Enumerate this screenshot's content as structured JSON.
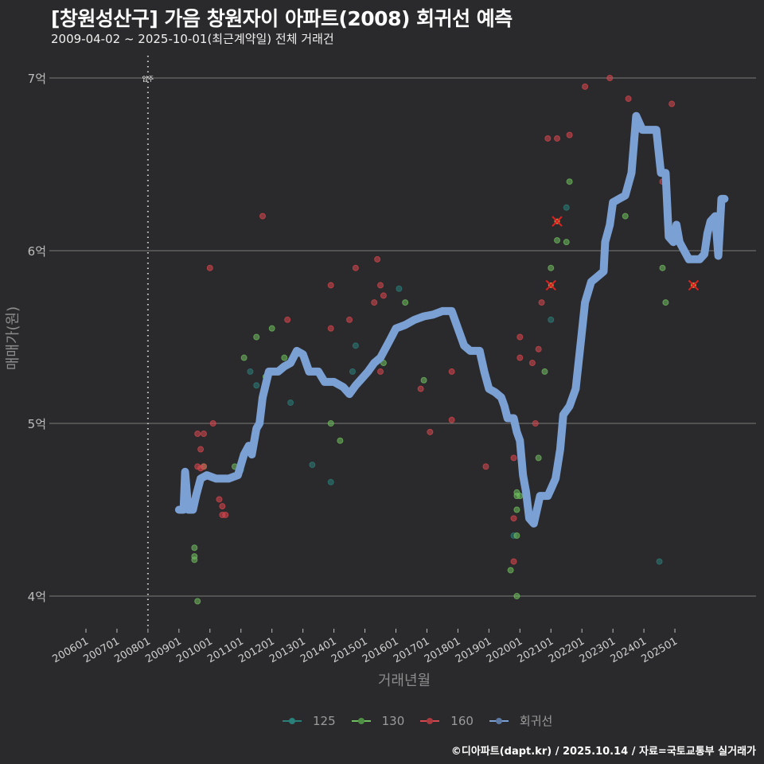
{
  "header": {
    "title": "[창원성산구] 가음 창원자이 아파트(2008) 회귀선 예측",
    "subtitle": "2009-04-02 ~ 2025-10-01(최근계약일) 전체 거래건"
  },
  "caption": "©디아파트(dapt.kr) / 2025.10.14 / 자료=국토교통부 실거래가",
  "colors": {
    "background": "#2a292b",
    "grid": "#7a7a7a",
    "s125": "#2a7f7a",
    "s130": "#6fbf5f",
    "s160": "#d9474f",
    "regression": "#7aa0d4",
    "marker": "#e02020"
  },
  "legend": [
    {
      "label": "125",
      "color": "#2a7f7a"
    },
    {
      "label": "130",
      "color": "#6fbf5f"
    },
    {
      "label": "160",
      "color": "#d9474f"
    },
    {
      "label": "회귀선",
      "color": "#7aa0d4"
    }
  ],
  "chart_data": {
    "type": "scatter",
    "title": "[창원성산구] 가음 창원자이 아파트(2008) 회귀선 예측",
    "subtitle": "2009-04-02 ~ 2025-10-01(최근계약일) 전체 거래건",
    "xlabel": "거래년월",
    "ylabel": "매매가(원)",
    "x_ticks": [
      "200601",
      "200701",
      "200801",
      "200901",
      "201001",
      "201101",
      "201201",
      "201301",
      "201401",
      "201501",
      "201601",
      "201701",
      "201801",
      "201901",
      "202001",
      "202101",
      "202201",
      "202301",
      "202401",
      "202501"
    ],
    "y_ticks": [
      {
        "value": 4,
        "label": "4억"
      },
      {
        "value": 5,
        "label": "5억"
      },
      {
        "value": 6,
        "label": "6억"
      },
      {
        "value": 7,
        "label": "7억"
      }
    ],
    "ylim": [
      3.85,
      7.12
    ],
    "xlim": [
      2005.2,
      2027.6
    ],
    "grid": true,
    "legend_position": "bottom",
    "annotation": {
      "x": 2008.0,
      "label": "입주"
    },
    "series": [
      {
        "name": "125",
        "points": [
          [
            2011.0,
            4.73
          ],
          [
            2011.5,
            5.22
          ],
          [
            2011.3,
            5.3
          ],
          [
            2012.6,
            5.12
          ],
          [
            2013.3,
            4.76
          ],
          [
            2013.9,
            4.66
          ],
          [
            2014.6,
            5.3
          ],
          [
            2014.7,
            5.45
          ],
          [
            2016.1,
            5.78
          ],
          [
            2019.8,
            4.35
          ],
          [
            2021.0,
            5.6
          ],
          [
            2021.5,
            6.25
          ],
          [
            2024.5,
            4.2
          ]
        ]
      },
      {
        "name": "130",
        "points": [
          [
            2009.2,
            4.5
          ],
          [
            2009.5,
            4.28
          ],
          [
            2009.5,
            4.23
          ],
          [
            2009.5,
            4.21
          ],
          [
            2009.6,
            3.97
          ],
          [
            2009.8,
            4.75
          ],
          [
            2010.8,
            4.75
          ],
          [
            2011.1,
            5.38
          ],
          [
            2011.4,
            4.85
          ],
          [
            2011.5,
            5.5
          ],
          [
            2011.8,
            5.27
          ],
          [
            2012.0,
            5.55
          ],
          [
            2012.4,
            5.38
          ],
          [
            2013.3,
            5.3
          ],
          [
            2013.9,
            5.0
          ],
          [
            2014.2,
            4.9
          ],
          [
            2015.6,
            5.35
          ],
          [
            2016.3,
            5.7
          ],
          [
            2016.9,
            5.25
          ],
          [
            2019.7,
            4.15
          ],
          [
            2019.9,
            4.6
          ],
          [
            2019.9,
            4.58
          ],
          [
            2020.0,
            4.58
          ],
          [
            2019.9,
            4.5
          ],
          [
            2019.9,
            4.35
          ],
          [
            2019.9,
            4.0
          ],
          [
            2020.6,
            4.8
          ],
          [
            2020.8,
            5.3
          ],
          [
            2021.0,
            5.9
          ],
          [
            2021.2,
            6.06
          ],
          [
            2021.5,
            6.05
          ],
          [
            2021.6,
            6.4
          ],
          [
            2023.4,
            6.2
          ],
          [
            2024.6,
            5.9
          ],
          [
            2024.7,
            5.7
          ]
        ]
      },
      {
        "name": "160",
        "points": [
          [
            2009.6,
            4.94
          ],
          [
            2009.8,
            4.94
          ],
          [
            2009.7,
            4.85
          ],
          [
            2009.8,
            4.75
          ],
          [
            2009.6,
            4.75
          ],
          [
            2009.7,
            4.74
          ],
          [
            2009.9,
            4.7
          ],
          [
            2010.1,
            4.69
          ],
          [
            2010.0,
            5.9
          ],
          [
            2010.1,
            5.0
          ],
          [
            2010.3,
            4.56
          ],
          [
            2010.4,
            4.52
          ],
          [
            2010.4,
            4.47
          ],
          [
            2010.5,
            4.47
          ],
          [
            2011.7,
            6.2
          ],
          [
            2012.5,
            5.6
          ],
          [
            2013.9,
            5.8
          ],
          [
            2013.9,
            5.55
          ],
          [
            2014.7,
            5.9
          ],
          [
            2014.5,
            5.6
          ],
          [
            2015.3,
            5.7
          ],
          [
            2015.4,
            5.95
          ],
          [
            2015.5,
            5.8
          ],
          [
            2015.6,
            5.74
          ],
          [
            2015.5,
            5.3
          ],
          [
            2016.8,
            5.2
          ],
          [
            2017.1,
            4.95
          ],
          [
            2017.8,
            5.02
          ],
          [
            2017.8,
            5.3
          ],
          [
            2018.9,
            4.75
          ],
          [
            2019.8,
            4.8
          ],
          [
            2019.8,
            4.45
          ],
          [
            2019.8,
            4.2
          ],
          [
            2020.0,
            5.5
          ],
          [
            2020.0,
            5.38
          ],
          [
            2020.4,
            5.35
          ],
          [
            2020.5,
            5.0
          ],
          [
            2020.6,
            5.43
          ],
          [
            2020.7,
            5.7
          ],
          [
            2020.9,
            6.65
          ],
          [
            2021.2,
            6.65
          ],
          [
            2021.6,
            6.67
          ],
          [
            2022.1,
            6.95
          ],
          [
            2022.9,
            7.0
          ],
          [
            2023.5,
            6.88
          ],
          [
            2023.8,
            6.7
          ],
          [
            2024.6,
            6.4
          ],
          [
            2024.7,
            6.4
          ],
          [
            2024.9,
            6.85
          ]
        ]
      },
      {
        "name": "회귀선",
        "points": [
          [
            2009.0,
            4.5
          ],
          [
            2009.15,
            4.5
          ],
          [
            2009.2,
            4.72
          ],
          [
            2009.3,
            4.5
          ],
          [
            2009.45,
            4.5
          ],
          [
            2009.55,
            4.58
          ],
          [
            2009.7,
            4.68
          ],
          [
            2009.9,
            4.7
          ],
          [
            2010.2,
            4.68
          ],
          [
            2010.6,
            4.68
          ],
          [
            2010.9,
            4.7
          ],
          [
            2011.1,
            4.82
          ],
          [
            2011.25,
            4.87
          ],
          [
            2011.35,
            4.82
          ],
          [
            2011.5,
            4.97
          ],
          [
            2011.6,
            5.0
          ],
          [
            2011.7,
            5.15
          ],
          [
            2011.9,
            5.3
          ],
          [
            2012.2,
            5.3
          ],
          [
            2012.4,
            5.33
          ],
          [
            2012.6,
            5.35
          ],
          [
            2012.8,
            5.42
          ],
          [
            2013.0,
            5.4
          ],
          [
            2013.2,
            5.3
          ],
          [
            2013.5,
            5.3
          ],
          [
            2013.7,
            5.24
          ],
          [
            2014.0,
            5.24
          ],
          [
            2014.3,
            5.21
          ],
          [
            2014.5,
            5.17
          ],
          [
            2014.7,
            5.22
          ],
          [
            2014.9,
            5.26
          ],
          [
            2015.1,
            5.3
          ],
          [
            2015.3,
            5.35
          ],
          [
            2015.5,
            5.38
          ],
          [
            2015.8,
            5.48
          ],
          [
            2016.0,
            5.55
          ],
          [
            2016.3,
            5.57
          ],
          [
            2016.6,
            5.6
          ],
          [
            2016.9,
            5.62
          ],
          [
            2017.2,
            5.63
          ],
          [
            2017.5,
            5.65
          ],
          [
            2017.8,
            5.65
          ],
          [
            2018.0,
            5.55
          ],
          [
            2018.2,
            5.45
          ],
          [
            2018.4,
            5.42
          ],
          [
            2018.7,
            5.42
          ],
          [
            2018.85,
            5.3
          ],
          [
            2019.0,
            5.2
          ],
          [
            2019.2,
            5.18
          ],
          [
            2019.4,
            5.15
          ],
          [
            2019.5,
            5.1
          ],
          [
            2019.6,
            5.03
          ],
          [
            2019.8,
            5.03
          ],
          [
            2019.9,
            4.95
          ],
          [
            2020.0,
            4.9
          ],
          [
            2020.1,
            4.7
          ],
          [
            2020.2,
            4.6
          ],
          [
            2020.3,
            4.45
          ],
          [
            2020.45,
            4.42
          ],
          [
            2020.55,
            4.5
          ],
          [
            2020.65,
            4.58
          ],
          [
            2020.9,
            4.58
          ],
          [
            2021.0,
            4.62
          ],
          [
            2021.15,
            4.68
          ],
          [
            2021.3,
            4.85
          ],
          [
            2021.4,
            5.05
          ],
          [
            2021.6,
            5.1
          ],
          [
            2021.8,
            5.2
          ],
          [
            2021.95,
            5.45
          ],
          [
            2022.1,
            5.7
          ],
          [
            2022.3,
            5.82
          ],
          [
            2022.5,
            5.85
          ],
          [
            2022.7,
            5.88
          ],
          [
            2022.75,
            6.05
          ],
          [
            2022.9,
            6.15
          ],
          [
            2023.0,
            6.28
          ],
          [
            2023.2,
            6.3
          ],
          [
            2023.4,
            6.32
          ],
          [
            2023.6,
            6.45
          ],
          [
            2023.75,
            6.78
          ],
          [
            2023.95,
            6.7
          ],
          [
            2024.4,
            6.7
          ],
          [
            2024.55,
            6.45
          ],
          [
            2024.7,
            6.45
          ],
          [
            2024.8,
            6.08
          ],
          [
            2024.95,
            6.05
          ],
          [
            2025.05,
            6.15
          ],
          [
            2025.15,
            6.05
          ],
          [
            2025.3,
            6.0
          ],
          [
            2025.45,
            5.95
          ],
          [
            2025.8,
            5.95
          ],
          [
            2025.95,
            5.98
          ],
          [
            2026.05,
            6.1
          ],
          [
            2026.15,
            6.17
          ],
          [
            2026.3,
            6.2
          ],
          [
            2026.4,
            5.97
          ],
          [
            2026.5,
            6.3
          ],
          [
            2026.6,
            6.3
          ]
        ]
      }
    ],
    "highlighted_points": [
      {
        "x": 2021.2,
        "y": 6.17,
        "series": "160"
      },
      {
        "x": 2021.0,
        "y": 5.8,
        "series": "160"
      },
      {
        "x": 2025.6,
        "y": 5.8,
        "series": "160"
      }
    ]
  },
  "axes": {
    "xlabel": "거래년월",
    "ylabel": "매매가(원)"
  }
}
